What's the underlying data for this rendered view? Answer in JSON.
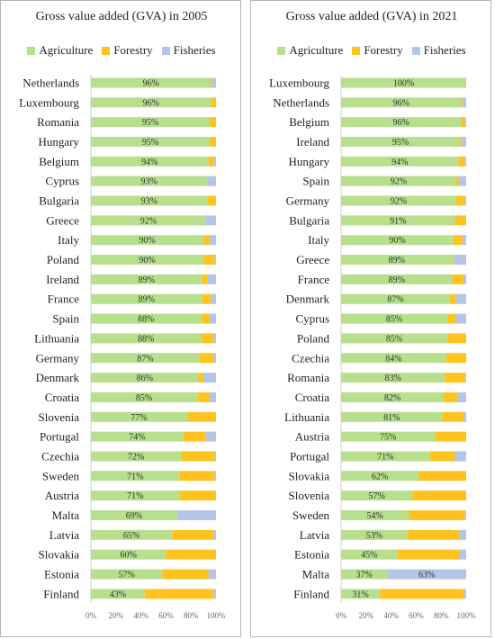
{
  "colors": {
    "Agriculture": "#b7df8c",
    "Forestry": "#ffc31f",
    "Fisheries": "#b3c6e7"
  },
  "chart_data": [
    {
      "type": "bar",
      "orientation": "horizontal",
      "stacked": true,
      "title": "Gross value added (GVA) in 2005",
      "legend_position": "top",
      "xlim": [
        0,
        100
      ],
      "x_ticks": [
        "0%",
        "20%",
        "40%",
        "60%",
        "80%",
        "100%"
      ],
      "categories": [
        "Netherlands",
        "Luxembourg",
        "Romania",
        "Hungary",
        "Belgium",
        "Cyprus",
        "Bulgaria",
        "Greece",
        "Italy",
        "Poland",
        "Ireland",
        "France",
        "Spain",
        "Lithuania",
        "Germany",
        "Denmark",
        "Croatia",
        "Slovenia",
        "Portugal",
        "Czechia",
        "Sweden",
        "Austria",
        "Malta",
        "Latvia",
        "Slovakia",
        "Estonia",
        "Finland"
      ],
      "series": [
        {
          "name": "Agriculture",
          "values": [
            96,
            96,
            95,
            95,
            94,
            93,
            93,
            92,
            90,
            90,
            89,
            89,
            88,
            88,
            87,
            86,
            85,
            77,
            74,
            72,
            71,
            71,
            69,
            65,
            60,
            57,
            43
          ]
        },
        {
          "name": "Forestry",
          "values": [
            1,
            4,
            5,
            5,
            4,
            0,
            7,
            0,
            5,
            9,
            4,
            7,
            7,
            10,
            11,
            4,
            10,
            23,
            18,
            27,
            28,
            29,
            0,
            33,
            40,
            37,
            55
          ]
        },
        {
          "name": "Fisheries",
          "values": [
            3,
            0,
            0,
            0,
            2,
            7,
            0,
            8,
            5,
            1,
            7,
            4,
            5,
            2,
            2,
            10,
            5,
            0,
            8,
            1,
            1,
            0,
            31,
            2,
            0,
            6,
            2
          ]
        }
      ],
      "data_labels": [
        "96%",
        "96%",
        "95%",
        "95%",
        "94%",
        "93%",
        "93%",
        "92%",
        "90%",
        "90%",
        "89%",
        "89%",
        "88%",
        "88%",
        "87%",
        "86%",
        "85%",
        "77%",
        "74%",
        "72%",
        "71%",
        "71%",
        "69%",
        "65%",
        "60%",
        "57%",
        "43%"
      ]
    },
    {
      "type": "bar",
      "orientation": "horizontal",
      "stacked": true,
      "title": "Gross value added (GVA) in  2021",
      "legend_position": "top",
      "xlim": [
        0,
        100
      ],
      "x_ticks": [
        "0%",
        "20%",
        "40%",
        "60%",
        "80%",
        "100%"
      ],
      "categories": [
        "Luxembourg",
        "Netherlands",
        "Belgium",
        "Ireland",
        "Hungary",
        "Spain",
        "Germany",
        "Bulgaria",
        "Italy",
        "Greece",
        "France",
        "Denmark",
        "Cyprus",
        "Poland",
        "Czechia",
        "Romania",
        "Croatia",
        "Lithuania",
        "Austria",
        "Portugal",
        "Slovakia",
        "Slovenia",
        "Sweden",
        "Latvia",
        "Estonia",
        "Malta",
        "Finland"
      ],
      "series": [
        {
          "name": "Agriculture",
          "values": [
            100,
            96,
            96,
            95,
            94,
            92,
            92,
            91,
            90,
            89,
            89,
            87,
            85,
            85,
            84,
            83,
            82,
            81,
            75,
            71,
            62,
            57,
            54,
            53,
            45,
            37,
            31
          ]
        },
        {
          "name": "Forestry",
          "values": [
            0,
            1,
            3,
            1,
            5,
            2,
            7,
            9,
            7,
            1,
            9,
            5,
            7,
            15,
            16,
            16,
            11,
            17,
            25,
            20,
            38,
            43,
            45,
            42,
            50,
            0,
            67
          ]
        },
        {
          "name": "Fisheries",
          "values": [
            0,
            3,
            1,
            4,
            1,
            6,
            1,
            0,
            3,
            10,
            2,
            8,
            8,
            0,
            0,
            1,
            7,
            2,
            0,
            9,
            0,
            0,
            1,
            5,
            5,
            63,
            2
          ]
        }
      ],
      "data_labels": [
        "100%",
        "96%",
        "96%",
        "95%",
        "94%",
        "92%",
        "92%",
        "91%",
        "90%",
        "89%",
        "89%",
        "87%",
        "85%",
        "85%",
        "84%",
        "83%",
        "82%",
        "81%",
        "75%",
        "71%",
        "62%",
        "57%",
        "54%",
        "53%",
        "45%",
        "37%",
        "31%"
      ],
      "extra_labels": [
        {
          "category": "Malta",
          "series": "Fisheries",
          "label": "63%"
        }
      ]
    }
  ]
}
